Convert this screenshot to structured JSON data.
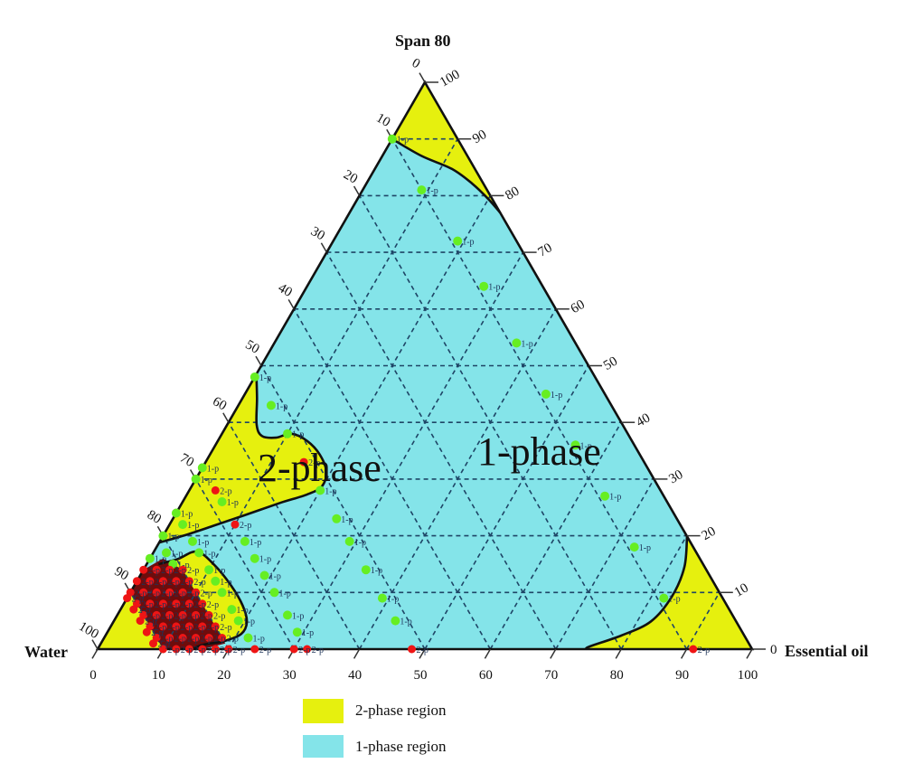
{
  "colors": {
    "two_phase_fill": "#e6f00e",
    "one_phase_fill": "#84e4e9",
    "one_p_marker": "#66ee22",
    "two_p_marker": "#ee1515",
    "dense_marker_shade": "#6e0c0c",
    "grid": "#1e4566",
    "boundary": "#111111",
    "point_label": "#1d3358"
  },
  "chart_data": {
    "type": "scatter",
    "subtype": "ternary",
    "title": "",
    "vertices": {
      "top": "Span 80",
      "bottom_left": "Water",
      "bottom_right": "Essential oil"
    },
    "axes": {
      "left_edge": {
        "component": "Water",
        "ticks": [
          "0",
          "10",
          "20",
          "30",
          "40",
          "50",
          "60",
          "70",
          "80",
          "90",
          "100"
        ],
        "direction": "increasing from top vertex to bottom-left vertex"
      },
      "right_edge": {
        "component": "Span 80",
        "ticks": [
          "100",
          "90",
          "80",
          "70",
          "60",
          "50",
          "40",
          "30",
          "20",
          "10",
          "0"
        ],
        "direction": "decreasing from top vertex to bottom-right vertex"
      },
      "bottom_edge": {
        "component": "Essential oil",
        "ticks": [
          "0",
          "10",
          "20",
          "30",
          "40",
          "50",
          "60",
          "70",
          "80",
          "90",
          "100"
        ],
        "direction": "increasing left to right"
      }
    },
    "coordinate_order": [
      "water",
      "span80",
      "essential_oil"
    ],
    "grid": {
      "on": true,
      "step": 10,
      "style": "dashed"
    },
    "annotations": [
      {
        "text": "2-phase",
        "region": "2-phase"
      },
      {
        "text": "1-phase",
        "region": "1-phase"
      }
    ],
    "legend": [
      {
        "label": "2-phase region",
        "color": "#e6f00e"
      },
      {
        "label": "1-phase region",
        "color": "#84e4e9"
      }
    ],
    "background_region": {
      "name": "1-phase region",
      "phase": "1-phase"
    },
    "regions": [
      {
        "name": "top-corner 2-phase region",
        "phase": "2-phase",
        "curve": [
          [
            10,
            90,
            0
          ],
          [
            7,
            87,
            6
          ],
          [
            3.5,
            84.7,
            11.8
          ],
          [
            1.7,
            82.1,
            16.2
          ],
          [
            0.6,
            79.4,
            20
          ],
          [
            0,
            77,
            23
          ]
        ],
        "closure": [
          [
            0,
            100,
            0
          ]
        ]
      },
      {
        "name": "left 2-phase region",
        "phase": "2-phase",
        "curve": [
          [
            51.5,
            48.5,
            0
          ],
          [
            53.5,
            44.3,
            2.2
          ],
          [
            55.9,
            39.6,
            4.5
          ],
          [
            56.1,
            37.6,
            6.3
          ],
          [
            54.1,
            37.3,
            8.6
          ],
          [
            51.4,
            38,
            10.6
          ],
          [
            49.6,
            36.7,
            13.7
          ],
          [
            48.9,
            34.3,
            16.8
          ],
          [
            49.4,
            31.3,
            19.3
          ],
          [
            51.4,
            28.7,
            19.9
          ],
          [
            54.3,
            27.3,
            18.4
          ],
          [
            59.2,
            25.8,
            15
          ],
          [
            65.8,
            23.6,
            10.6
          ],
          [
            71.6,
            21.7,
            6.7
          ],
          [
            76.6,
            20.1,
            3.3
          ],
          [
            81.2,
            18.8,
            0
          ]
        ],
        "closure": []
      },
      {
        "name": "bottom-right 2-phase region",
        "phase": "2-phase",
        "curve": [
          [
            0,
            19.9,
            80.1
          ],
          [
            3.1,
            14.5,
            82.4
          ],
          [
            7.6,
            9.3,
            83.1
          ],
          [
            13,
            4.9,
            82.1
          ],
          [
            18.8,
            2.4,
            78.8
          ],
          [
            24.5,
            0.5,
            75
          ],
          [
            25.4,
            0,
            74.6
          ]
        ],
        "closure": [
          [
            0,
            0,
            100
          ]
        ]
      },
      {
        "name": "water-corner 2-phase region",
        "phase": "2-phase",
        "curve": [],
        "closure": [
          [
            100,
            0,
            0
          ],
          [
            90,
            10,
            0
          ],
          [
            90,
            0,
            10
          ]
        ]
      },
      {
        "name": "lower 2-phase lobe",
        "phase": "2-phase",
        "curve": [
          [
            83.2,
            15,
            1.8
          ],
          [
            79.8,
            15.9,
            4.3
          ],
          [
            76.2,
            17.2,
            6.6
          ],
          [
            74.7,
            14.7,
            10.6
          ],
          [
            74,
            11.2,
            14.8
          ],
          [
            74,
            7.7,
            18.3
          ],
          [
            74.8,
            4.8,
            20.4
          ],
          [
            76.7,
            2.7,
            20.6
          ],
          [
            80,
            1.4,
            18.6
          ],
          [
            83.4,
            0.8,
            15.8
          ],
          [
            85.6,
            0,
            14.4
          ]
        ],
        "closure": [
          [
            90,
            0,
            10
          ],
          [
            90,
            10,
            0
          ],
          [
            86.8,
            13.2,
            0
          ]
        ]
      }
    ],
    "series": [
      {
        "name": "1-phase samples",
        "marker_label": "1-p",
        "color": "#66ee22",
        "radius": 5,
        "points": [
          [
            10,
            90,
            0
          ],
          [
            10,
            81,
            9
          ],
          [
            9,
            72,
            19
          ],
          [
            9,
            64,
            27
          ],
          [
            9,
            54,
            37
          ],
          [
            9,
            45,
            46
          ],
          [
            9,
            36,
            55
          ],
          [
            9,
            27,
            64
          ],
          [
            9,
            18,
            73
          ],
          [
            9,
            9,
            82
          ],
          [
            52,
            48,
            0
          ],
          [
            52,
            43,
            5
          ],
          [
            52,
            38,
            10
          ],
          [
            52,
            28,
            20
          ],
          [
            52,
            23,
            25
          ],
          [
            52,
            19,
            29
          ],
          [
            52,
            14,
            34
          ],
          [
            52,
            9,
            39
          ],
          [
            52,
            5,
            43
          ],
          [
            68,
            32,
            0
          ],
          [
            70,
            30,
            0
          ],
          [
            68,
            26,
            6
          ],
          [
            68,
            19,
            13
          ],
          [
            68,
            16,
            16
          ],
          [
            68,
            13,
            19
          ],
          [
            68,
            10,
            22
          ],
          [
            68,
            6,
            26
          ],
          [
            68,
            3,
            29
          ],
          [
            76,
            24,
            0
          ],
          [
            76,
            22,
            2
          ],
          [
            76,
            19,
            5
          ],
          [
            76,
            17,
            7
          ],
          [
            76,
            14,
            10
          ],
          [
            76,
            12,
            12
          ],
          [
            76,
            10,
            14
          ],
          [
            76,
            7,
            17
          ],
          [
            76,
            5,
            19
          ],
          [
            76,
            2,
            22
          ],
          [
            80,
            20,
            0
          ],
          [
            81,
            17,
            2
          ],
          [
            81,
            15,
            4
          ],
          [
            84,
            16,
            0
          ]
        ]
      },
      {
        "name": "2-phase samples",
        "marker_label": "2-p",
        "color": "#ee1515",
        "radius": 4.5,
        "dense_area": [
          [
            86,
            14,
            0
          ],
          [
            82,
            16,
            2
          ],
          [
            80,
            14,
            6
          ],
          [
            80,
            6,
            14
          ],
          [
            80,
            1,
            19
          ],
          [
            84,
            0,
            16
          ],
          [
            90,
            0,
            10
          ],
          [
            90,
            10,
            0
          ]
        ],
        "points": [
          [
            9,
            0,
            91
          ],
          [
            52,
            33,
            15
          ],
          [
            52,
            0,
            48
          ],
          [
            68,
            28,
            4
          ],
          [
            68,
            22,
            10
          ],
          [
            68,
            0,
            32
          ],
          [
            70,
            0,
            30
          ],
          [
            76,
            0,
            24
          ],
          [
            80,
            14,
            6
          ],
          [
            80,
            12,
            8
          ],
          [
            80,
            10,
            10
          ],
          [
            80,
            8,
            12
          ],
          [
            80,
            6,
            14
          ],
          [
            80,
            4,
            16
          ],
          [
            80,
            2,
            18
          ],
          [
            80,
            0,
            20
          ],
          [
            82,
            14,
            4
          ],
          [
            82,
            12,
            6
          ],
          [
            82,
            10,
            8
          ],
          [
            82,
            8,
            10
          ],
          [
            82,
            6,
            12
          ],
          [
            82,
            4,
            14
          ],
          [
            82,
            2,
            16
          ],
          [
            82,
            0,
            18
          ],
          [
            84,
            14,
            2
          ],
          [
            84,
            12,
            4
          ],
          [
            84,
            10,
            6
          ],
          [
            84,
            8,
            8
          ],
          [
            84,
            6,
            10
          ],
          [
            84,
            4,
            12
          ],
          [
            84,
            2,
            14
          ],
          [
            84,
            0,
            16
          ],
          [
            86,
            14,
            0
          ],
          [
            86,
            12,
            2
          ],
          [
            86,
            10,
            4
          ],
          [
            86,
            8,
            6
          ],
          [
            86,
            6,
            8
          ],
          [
            86,
            4,
            10
          ],
          [
            86,
            2,
            12
          ],
          [
            86,
            0,
            14
          ],
          [
            88,
            12,
            0
          ],
          [
            88,
            10,
            2
          ],
          [
            88,
            8,
            4
          ],
          [
            88,
            6,
            6
          ],
          [
            88,
            4,
            8
          ],
          [
            88,
            2,
            10
          ],
          [
            88,
            0,
            12
          ],
          [
            90,
            10,
            0
          ],
          [
            90,
            8,
            2
          ],
          [
            90,
            6,
            4
          ],
          [
            90,
            4,
            6
          ],
          [
            90,
            2,
            8
          ],
          [
            90,
            0,
            10
          ],
          [
            91,
            9,
            0
          ],
          [
            91,
            7,
            2
          ],
          [
            91,
            5,
            4
          ],
          [
            91,
            3,
            6
          ],
          [
            91,
            1,
            8
          ]
        ]
      }
    ]
  }
}
